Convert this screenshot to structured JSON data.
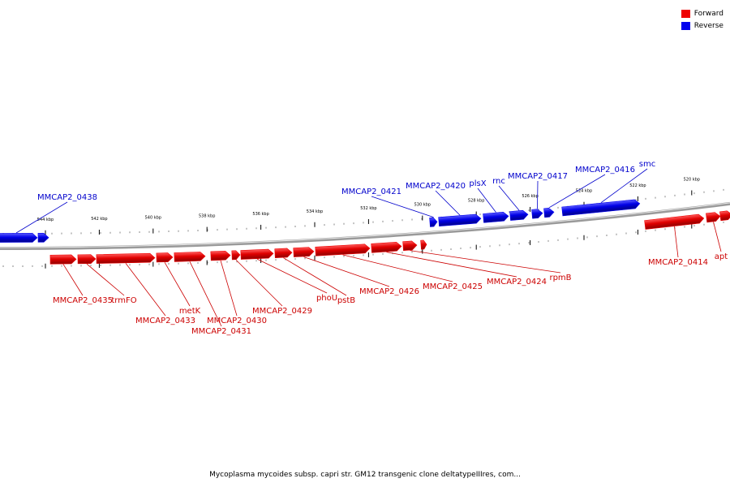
{
  "legend": {
    "forward_label": "Forward",
    "reverse_label": "Reverse",
    "forward_color": "#ee0000",
    "reverse_color": "#0000ee"
  },
  "caption": "Mycoplasma mycoides subsp. capri str. GM12 transgenic clone deltatypeIIIres, com...",
  "ticks": [
    {
      "label": "544 kbp",
      "kbp": 544
    },
    {
      "label": "542 kbp",
      "kbp": 542
    },
    {
      "label": "540 kbp",
      "kbp": 540
    },
    {
      "label": "538 kbp",
      "kbp": 538
    },
    {
      "label": "536 kbp",
      "kbp": 536
    },
    {
      "label": "534 kbp",
      "kbp": 534
    },
    {
      "label": "532 kbp",
      "kbp": 532
    },
    {
      "label": "530 kbp",
      "kbp": 530
    },
    {
      "label": "528 kbp",
      "kbp": 528
    },
    {
      "label": "526 kbp",
      "kbp": 526
    },
    {
      "label": "524 kbp",
      "kbp": 524
    },
    {
      "label": "522 kbp",
      "kbp": 522
    },
    {
      "label": "520 kbp",
      "kbp": 520
    }
  ],
  "genes_forward": [
    {
      "label": "MMCAP2_0435"
    },
    {
      "label": "trmFO"
    },
    {
      "label": "MMCAP2_0433"
    },
    {
      "label": "metK"
    },
    {
      "label": "MMCAP2_0431"
    },
    {
      "label": "MMCAP2_0430"
    },
    {
      "label": "MMCAP2_0429"
    },
    {
      "label": "phoU"
    },
    {
      "label": "pstB"
    },
    {
      "label": "MMCAP2_0426"
    },
    {
      "label": "MMCAP2_0425"
    },
    {
      "label": "MMCAP2_0424"
    },
    {
      "label": "rpmB"
    },
    {
      "label": "MMCAP2_0414"
    },
    {
      "label": "apt"
    }
  ],
  "genes_reverse": [
    {
      "label": "MMCAP2_0438"
    },
    {
      "label": "MMCAP2_0421"
    },
    {
      "label": "MMCAP2_0420"
    },
    {
      "label": "plsX"
    },
    {
      "label": "rnc"
    },
    {
      "label": "MMCAP2_0417"
    },
    {
      "label": "MMCAP2_0416"
    },
    {
      "label": "smc"
    }
  ]
}
